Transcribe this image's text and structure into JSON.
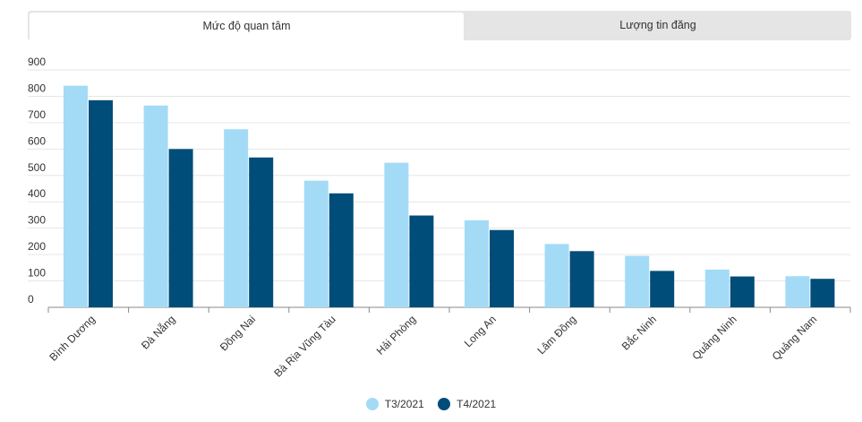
{
  "tabs": [
    {
      "label": "Mức độ quan tâm",
      "active": true
    },
    {
      "label": "Lượng tin đăng",
      "active": false
    }
  ],
  "colors": {
    "series1": "#a3dbf7",
    "series2": "#004d7a",
    "grid": "#e6e6e6",
    "axis": "#888888"
  },
  "chart_data": {
    "type": "bar",
    "categories": [
      "Bình Dương",
      "Đà Nẵng",
      "Đồng Nai",
      "Bà Rịa Vũng Tàu",
      "Hải Phòng",
      "Long An",
      "Lâm Đồng",
      "Bắc Ninh",
      "Quảng Ninh",
      "Quảng Nam"
    ],
    "series": [
      {
        "name": "T3/2021",
        "values": [
          840,
          765,
          675,
          480,
          548,
          330,
          240,
          195,
          143,
          118
        ]
      },
      {
        "name": "T4/2021",
        "values": [
          785,
          600,
          568,
          432,
          348,
          293,
          213,
          138,
          117,
          108
        ]
      }
    ],
    "ylim": [
      0,
      900
    ],
    "yticks": [
      "0",
      "100",
      "200",
      "300",
      "400",
      "500",
      "600",
      "700",
      "800",
      "900"
    ],
    "grid": true,
    "legend": "bottom-center"
  }
}
